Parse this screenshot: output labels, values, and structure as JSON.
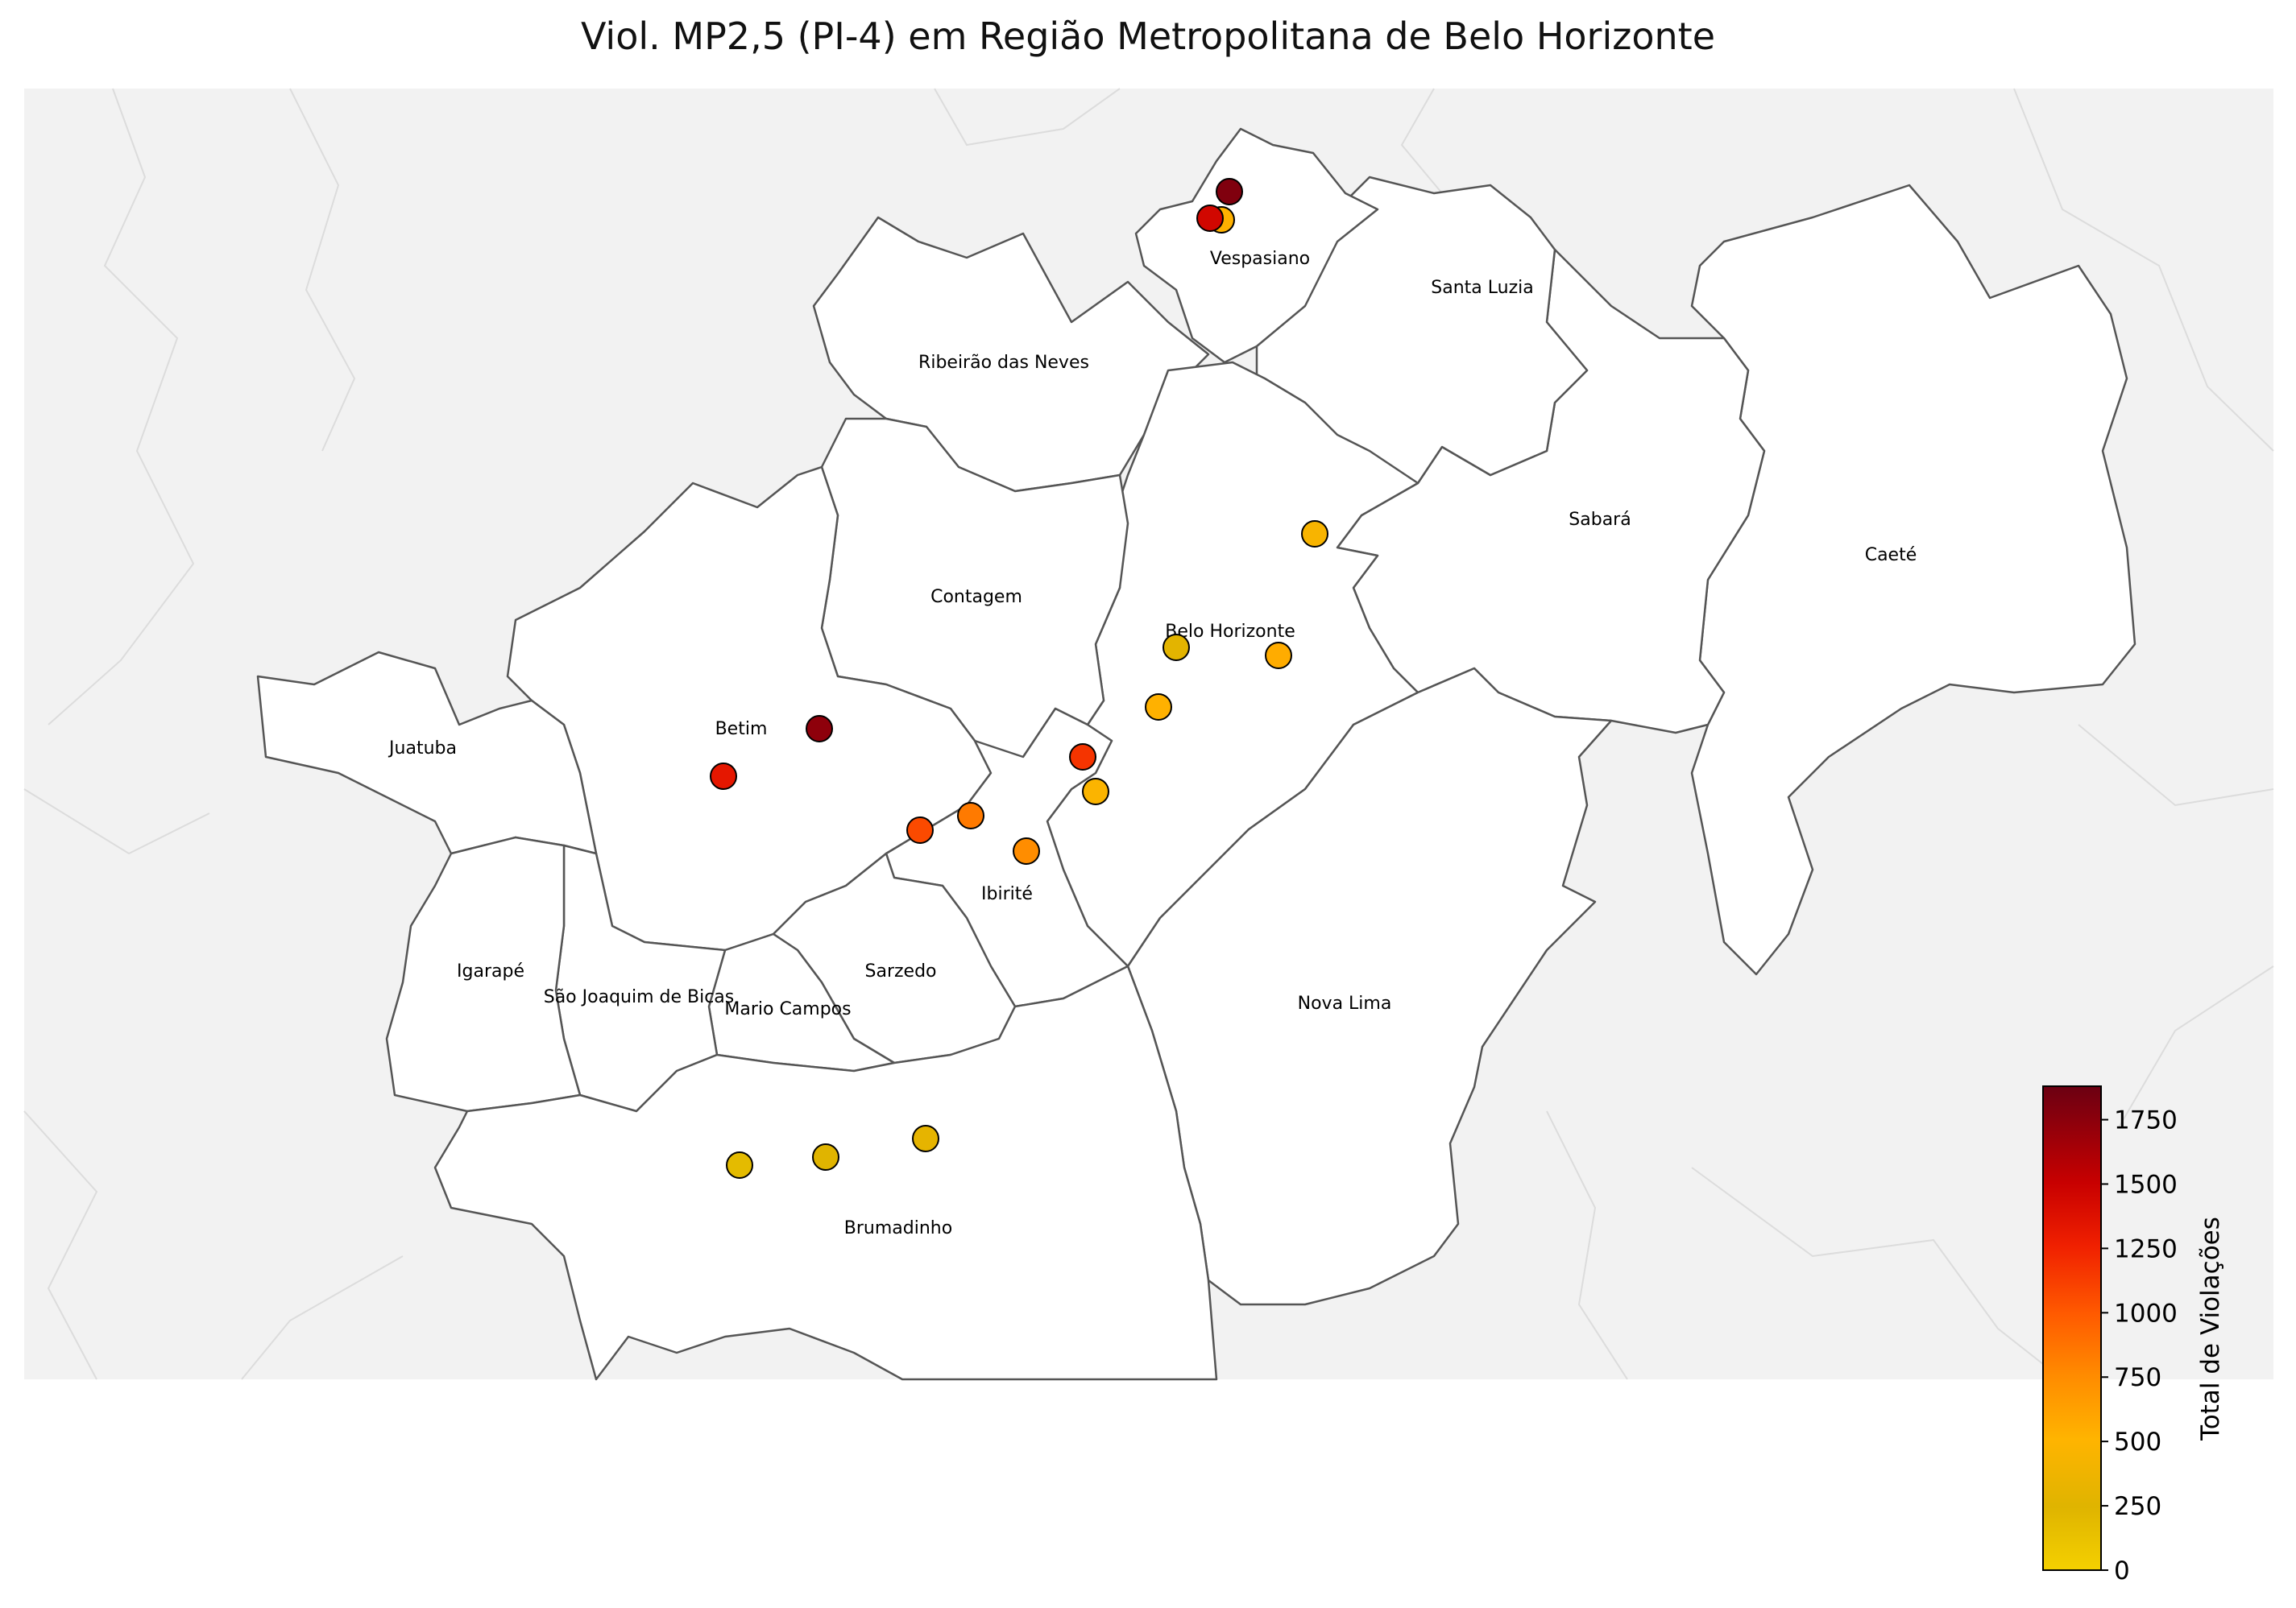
{
  "title": "Viol. MP2,5 (PI-4) em Região Metropolitana de Belo Horizonte",
  "municipalities": [
    {
      "key": "vespasiano",
      "label": "Vespasiano"
    },
    {
      "key": "santa_luzia",
      "label": "Santa Luzia"
    },
    {
      "key": "ribeirao",
      "label": "Ribeirão das Neves"
    },
    {
      "key": "sabara",
      "label": "Sabará"
    },
    {
      "key": "caete",
      "label": "Caeté"
    },
    {
      "key": "contagem",
      "label": "Contagem"
    },
    {
      "key": "bh",
      "label": "Belo Horizonte"
    },
    {
      "key": "betim",
      "label": "Betim"
    },
    {
      "key": "juatuba",
      "label": "Juatuba"
    },
    {
      "key": "ibirite",
      "label": "Ibirité"
    },
    {
      "key": "igarape",
      "label": "Igarapé"
    },
    {
      "key": "sao_joaquim",
      "label": "São Joaquim de Bicas"
    },
    {
      "key": "sarzedo",
      "label": "Sarzedo"
    },
    {
      "key": "mario_campos",
      "label": "Mario Campos"
    },
    {
      "key": "nova_lima",
      "label": "Nova Lima"
    },
    {
      "key": "brumadinho",
      "label": "Brumadinho"
    }
  ],
  "stations": [
    {
      "municipality": "Vespasiano",
      "violations": 1820
    },
    {
      "municipality": "Vespasiano",
      "violations": 560
    },
    {
      "municipality": "Vespasiano",
      "violations": 1550
    },
    {
      "municipality": "Belo Horizonte",
      "violations": 480
    },
    {
      "municipality": "Belo Horizonte",
      "violations": 300
    },
    {
      "municipality": "Belo Horizonte",
      "violations": 590
    },
    {
      "municipality": "Belo Horizonte",
      "violations": 560
    },
    {
      "municipality": "Belo Horizonte",
      "violations": 1250
    },
    {
      "municipality": "Belo Horizonte",
      "violations": 500
    },
    {
      "municipality": "Betim",
      "violations": 1780
    },
    {
      "municipality": "Betim",
      "violations": 1420
    },
    {
      "municipality": "Ibirité",
      "violations": 1150
    },
    {
      "municipality": "Ibirité",
      "violations": 900
    },
    {
      "municipality": "Ibirité",
      "violations": 800
    },
    {
      "municipality": "Brumadinho",
      "violations": 200
    },
    {
      "municipality": "Brumadinho",
      "violations": 280
    },
    {
      "municipality": "Brumadinho",
      "violations": 330
    }
  ],
  "colorbar": {
    "label": "Total de Violações",
    "min": 0,
    "max": 1880,
    "ticks": [
      "0",
      "250",
      "500",
      "750",
      "1000",
      "1250",
      "1500",
      "1750"
    ],
    "tick_values": [
      0,
      250,
      500,
      750,
      1000,
      1250,
      1500,
      1750
    ],
    "colors": [
      "#f4d000",
      "#dfb400",
      "#ffb400",
      "#ff8c00",
      "#ff5a00",
      "#f02000",
      "#c80000",
      "#6b0012"
    ]
  },
  "colors": {
    "background_region": "#f2f2f2",
    "municipality_fill": "#ffffff",
    "border": "#555555",
    "outer_border": "#dddddd"
  }
}
